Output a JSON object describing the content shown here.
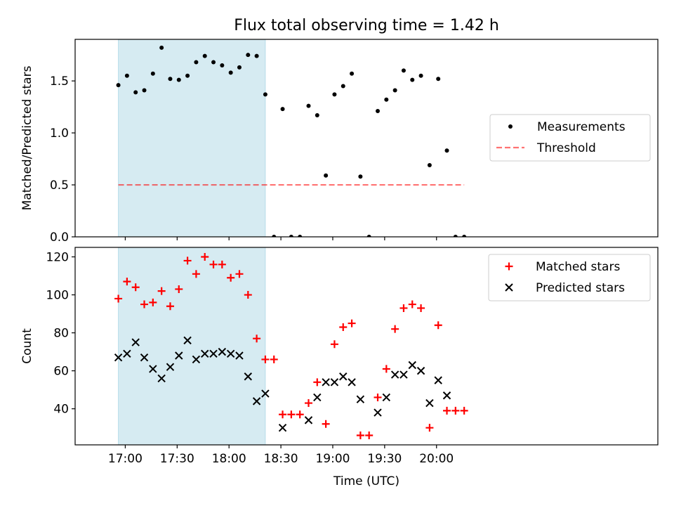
{
  "figure": {
    "title": "Flux total observing time = 1.42 h",
    "xlabel": "Time (UTC)"
  },
  "chart_data": [
    {
      "type": "scatter",
      "ylabel": "Matched/Predicted stars",
      "ylim": [
        0,
        1.9
      ],
      "xlim_minutes": [
        -29,
        308
      ],
      "x_ticks": [
        "17:00",
        "17:30",
        "18:00",
        "18:30",
        "19:00",
        "19:30",
        "20:00"
      ],
      "y_ticks": [
        "0.0",
        "0.5",
        "1.0",
        "1.5"
      ],
      "y_tick_values": [
        0,
        0.5,
        1.0,
        1.5
      ],
      "grid": false,
      "legend_position": "center-right",
      "shaded_span": {
        "from": "16:56",
        "to": "18:21",
        "color": "#add8e6"
      },
      "threshold": {
        "name": "Threshold",
        "value": 0.5,
        "from": "16:56",
        "to": "20:16",
        "color": "#ff0000"
      },
      "series": [
        {
          "name": "Measurements",
          "color": "#000000",
          "marker": "dot",
          "x": [
            "16:56",
            "17:01",
            "17:06",
            "17:11",
            "17:16",
            "17:21",
            "17:26",
            "17:31",
            "17:36",
            "17:41",
            "17:46",
            "17:51",
            "17:56",
            "18:01",
            "18:06",
            "18:11",
            "18:16",
            "18:21",
            "18:26",
            "18:31",
            "18:36",
            "18:41",
            "18:46",
            "18:51",
            "18:56",
            "19:01",
            "19:06",
            "19:11",
            "19:16",
            "19:21",
            "19:26",
            "19:31",
            "19:36",
            "19:41",
            "19:46",
            "19:51",
            "19:56",
            "20:01",
            "20:06",
            "20:11",
            "20:16"
          ],
          "y": [
            1.46,
            1.55,
            1.39,
            1.41,
            1.57,
            1.82,
            1.52,
            1.51,
            1.55,
            1.68,
            1.74,
            1.68,
            1.65,
            1.58,
            1.63,
            1.75,
            1.74,
            1.37,
            0.0,
            1.23,
            0.0,
            0.0,
            1.26,
            1.17,
            0.59,
            1.37,
            1.45,
            1.57,
            0.58,
            0.0,
            1.21,
            1.32,
            1.41,
            1.6,
            1.51,
            1.55,
            0.69,
            1.52,
            0.83,
            0.0,
            0.0
          ]
        }
      ]
    },
    {
      "type": "scatter",
      "ylabel": "Count",
      "ylim": [
        21,
        125
      ],
      "xlim_minutes": [
        -29,
        308
      ],
      "x_ticks": [
        "17:00",
        "17:30",
        "18:00",
        "18:30",
        "19:00",
        "19:30",
        "20:00"
      ],
      "y_ticks": [
        "40",
        "60",
        "80",
        "100",
        "120"
      ],
      "y_tick_values": [
        40,
        60,
        80,
        100,
        120
      ],
      "grid": false,
      "legend_position": "top-right",
      "shaded_span": {
        "from": "16:56",
        "to": "18:21",
        "color": "#add8e6"
      },
      "series": [
        {
          "name": "Matched stars",
          "color": "#ff0000",
          "marker": "plus",
          "x": [
            "16:56",
            "17:01",
            "17:06",
            "17:11",
            "17:16",
            "17:21",
            "17:26",
            "17:31",
            "17:36",
            "17:41",
            "17:46",
            "17:51",
            "17:56",
            "18:01",
            "18:06",
            "18:11",
            "18:16",
            "18:21",
            "18:26",
            "18:31",
            "18:36",
            "18:41",
            "18:46",
            "18:51",
            "18:56",
            "19:01",
            "19:06",
            "19:11",
            "19:16",
            "19:21",
            "19:26",
            "19:31",
            "19:36",
            "19:41",
            "19:46",
            "19:51",
            "19:56",
            "20:01",
            "20:06",
            "20:11",
            "20:16"
          ],
          "y": [
            98,
            107,
            104,
            95,
            96,
            102,
            94,
            103,
            118,
            111,
            120,
            116,
            116,
            109,
            111,
            100,
            77,
            66,
            66,
            37,
            37,
            37,
            43,
            54,
            32,
            74,
            83,
            85,
            26,
            26,
            46,
            61,
            82,
            93,
            95,
            93,
            30,
            84,
            39,
            39,
            39
          ]
        },
        {
          "name": "Predicted stars",
          "color": "#000000",
          "marker": "x",
          "x": [
            "16:56",
            "17:01",
            "17:06",
            "17:11",
            "17:16",
            "17:21",
            "17:26",
            "17:31",
            "17:36",
            "17:41",
            "17:46",
            "17:51",
            "17:56",
            "18:01",
            "18:06",
            "18:11",
            "18:16",
            "18:21",
            "18:31",
            "18:46",
            "18:51",
            "18:56",
            "19:01",
            "19:06",
            "19:11",
            "19:16",
            "19:26",
            "19:31",
            "19:36",
            "19:41",
            "19:46",
            "19:51",
            "19:56",
            "20:01",
            "20:06"
          ],
          "y": [
            67,
            69,
            75,
            67,
            61,
            56,
            62,
            68,
            76,
            66,
            69,
            69,
            70,
            69,
            68,
            57,
            44,
            48,
            30,
            34,
            46,
            54,
            54,
            57,
            54,
            45,
            38,
            46,
            58,
            58,
            63,
            60,
            43,
            55,
            47
          ]
        }
      ]
    }
  ]
}
